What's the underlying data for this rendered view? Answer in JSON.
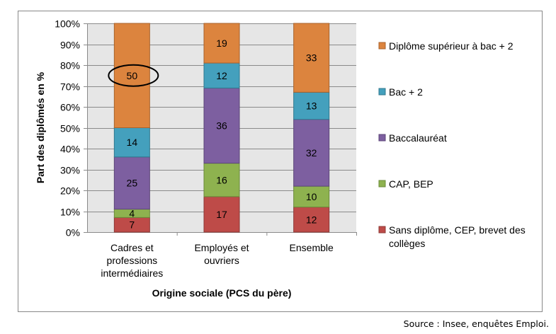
{
  "chart_data": {
    "type": "bar",
    "stacked": true,
    "percent": true,
    "categories": [
      [
        "Cadres et",
        "professions",
        "intermédiaires"
      ],
      [
        "Employés et",
        "ouvriers"
      ],
      [
        "Ensemble"
      ]
    ],
    "category_names": [
      "Cadres et professions intermédiaires",
      "Employés et ouvriers",
      "Ensemble"
    ],
    "series": [
      {
        "name": "Sans diplôme, CEP, brevet des collèges",
        "name_lines": [
          "Sans diplôme, CEP, brevet des",
          "collèges"
        ],
        "color": "#BE4B48",
        "stroke": "#8C3836",
        "values": [
          7,
          17,
          12
        ]
      },
      {
        "name": "CAP, BEP",
        "name_lines": [
          "CAP, BEP"
        ],
        "color": "#8EB24F",
        "stroke": "#6A8A3A",
        "values": [
          4,
          16,
          10
        ]
      },
      {
        "name": "Baccalauréat",
        "name_lines": [
          "Baccalauréat"
        ],
        "color": "#7D5FA0",
        "stroke": "#5C4678",
        "values": [
          25,
          36,
          32
        ]
      },
      {
        "name": "Bac + 2",
        "name_lines": [
          "Bac + 2"
        ],
        "color": "#44A0BD",
        "stroke": "#30788E",
        "values": [
          14,
          12,
          13
        ]
      },
      {
        "name": "Diplôme supérieur à bac + 2",
        "name_lines": [
          "Diplôme supérieur à bac + 2"
        ],
        "color": "#DC843E",
        "stroke": "#A8622C",
        "values": [
          50,
          19,
          33
        ]
      }
    ],
    "ylim": [
      0,
      100
    ],
    "yticks": [
      "0%",
      "10%",
      "20%",
      "30%",
      "40%",
      "50%",
      "60%",
      "70%",
      "80%",
      "90%",
      "100%"
    ],
    "xlabel": "Origine sociale (PCS du père)",
    "ylabel": "Part  des diplômés en %",
    "grid": true,
    "legend": "right",
    "annotation": {
      "type": "ellipse",
      "category": 0,
      "series": 4,
      "label": "50"
    }
  },
  "source": "Source : Insee, enquêtes Emploi."
}
